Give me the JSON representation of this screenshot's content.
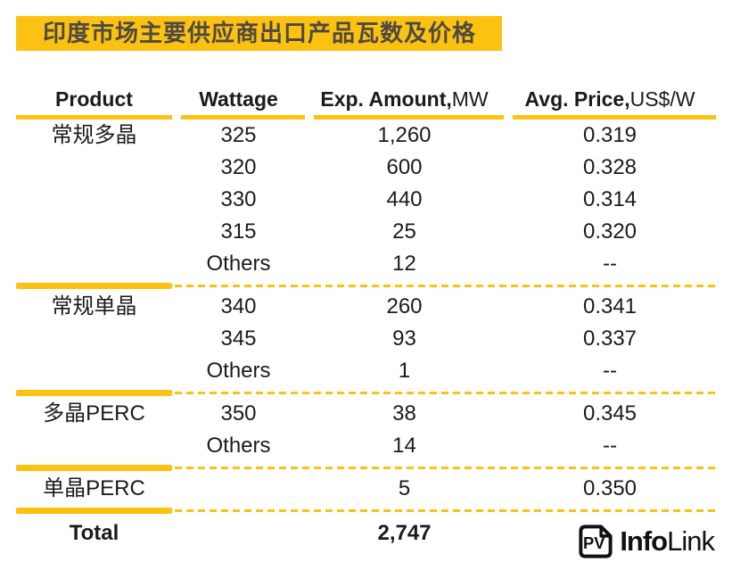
{
  "title": "印度市场主要供应商出口产品瓦数及价格",
  "colors": {
    "accent_gold": "#fcc211",
    "banner_text": "#4e4a43",
    "table_text": "#1b1b1b"
  },
  "table": {
    "headers": [
      {
        "bold": "Product",
        "light": ""
      },
      {
        "bold": "Wattage",
        "light": ""
      },
      {
        "bold": "Exp. Amount,",
        "light": "MW"
      },
      {
        "bold": "Avg. Price,",
        "light": "US$/W"
      }
    ],
    "sections": [
      {
        "product": "常规多晶",
        "rows": [
          {
            "wattage": "325",
            "amount": "1,260",
            "price": "0.319"
          },
          {
            "wattage": "320",
            "amount": "600",
            "price": "0.328"
          },
          {
            "wattage": "330",
            "amount": "440",
            "price": "0.314"
          },
          {
            "wattage": "315",
            "amount": "25",
            "price": "0.320"
          },
          {
            "wattage": "Others",
            "amount": "12",
            "price": "--"
          }
        ]
      },
      {
        "product": "常规单晶",
        "rows": [
          {
            "wattage": "340",
            "amount": "260",
            "price": "0.341"
          },
          {
            "wattage": "345",
            "amount": "93",
            "price": "0.337"
          },
          {
            "wattage": "Others",
            "amount": "1",
            "price": "--"
          }
        ]
      },
      {
        "product": "多晶PERC",
        "rows": [
          {
            "wattage": "350",
            "amount": "38",
            "price": "0.345"
          },
          {
            "wattage": "Others",
            "amount": "14",
            "price": "--"
          }
        ]
      },
      {
        "product": "单晶PERC",
        "rows": [
          {
            "wattage": "",
            "amount": "5",
            "price": "0.350"
          }
        ]
      }
    ],
    "total": {
      "label": "Total",
      "amount": "2,747"
    }
  },
  "logo": {
    "icon_text": "PV",
    "info": "Info",
    "link": "Link"
  },
  "chart_data": {
    "type": "table",
    "title": "印度市场主要供应商出口产品瓦数及价格",
    "columns": [
      "Product",
      "Wattage",
      "Exp. Amount,MW",
      "Avg. Price,US$/W"
    ],
    "rows": [
      [
        "常规多晶",
        "325",
        1260,
        0.319
      ],
      [
        "常规多晶",
        "320",
        600,
        0.328
      ],
      [
        "常规多晶",
        "330",
        440,
        0.314
      ],
      [
        "常规多晶",
        "315",
        25,
        0.32
      ],
      [
        "常规多晶",
        "Others",
        12,
        null
      ],
      [
        "常规单晶",
        "340",
        260,
        0.341
      ],
      [
        "常规单晶",
        "345",
        93,
        0.337
      ],
      [
        "常规单晶",
        "Others",
        1,
        null
      ],
      [
        "多晶PERC",
        "350",
        38,
        0.345
      ],
      [
        "多晶PERC",
        "Others",
        14,
        null
      ],
      [
        "单晶PERC",
        "",
        5,
        0.35
      ],
      [
        "Total",
        "",
        2747,
        null
      ]
    ]
  }
}
